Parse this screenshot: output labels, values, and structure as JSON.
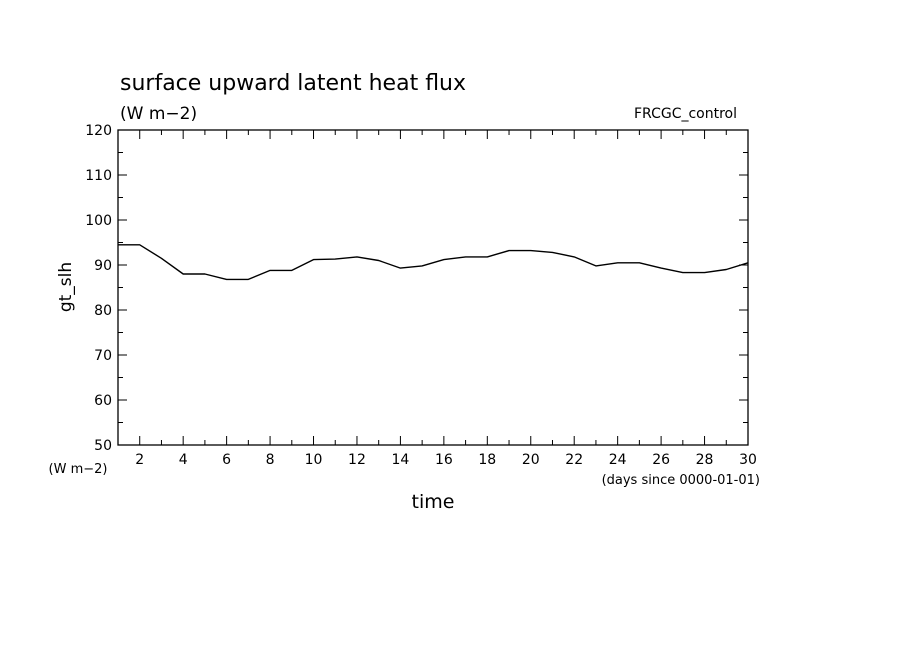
{
  "chart_data": {
    "type": "line",
    "title": "surface upward latent heat flux",
    "subtitle": "(W m−2)",
    "run_label": "FRCGC_control",
    "ylabel": "gt_slh",
    "y_unit_label": "(W m−2)",
    "xlabel": "time",
    "x_unit_label": "(days since 0000-01-01)",
    "xlim": [
      1,
      30
    ],
    "ylim": [
      50,
      120
    ],
    "x_ticks": [
      2,
      4,
      6,
      8,
      10,
      12,
      14,
      16,
      18,
      20,
      22,
      24,
      26,
      28,
      30
    ],
    "y_ticks": [
      50,
      60,
      70,
      80,
      90,
      100,
      110,
      120
    ],
    "grid": false,
    "line_color": "#000000",
    "series": [
      {
        "x": [
          1,
          2,
          3,
          4,
          5,
          6,
          7,
          8,
          9,
          10,
          11,
          12,
          13,
          14,
          15,
          16,
          17,
          18,
          19,
          20,
          21,
          22,
          23,
          24,
          25,
          26,
          27,
          28,
          29,
          30
        ],
        "values": [
          94.5,
          94.5,
          91.5,
          88,
          88,
          86.8,
          86.8,
          88.8,
          88.8,
          91.2,
          91.3,
          91.8,
          91.0,
          89.3,
          89.8,
          91.2,
          91.8,
          91.8,
          93.2,
          93.2,
          92.8,
          91.8,
          89.8,
          90.5,
          90.5,
          89.3,
          88.3,
          88.3,
          89.0,
          90.5
        ]
      }
    ]
  }
}
